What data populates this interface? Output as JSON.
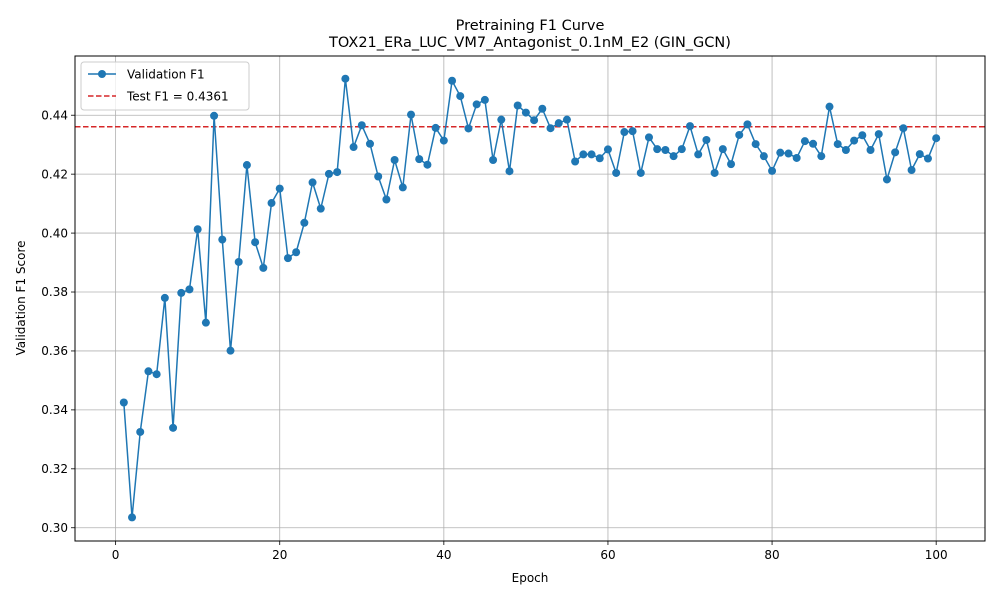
{
  "chart_data": {
    "type": "line",
    "title": "Pretraining F1 Curve",
    "subtitle": "TOX21_ERa_LUC_VM7_Antagonist_0.1nM_E2 (GIN_GCN)",
    "xlabel": "Epoch",
    "ylabel": "Validation F1 Score",
    "xlim": [
      -4.95,
      105.95
    ],
    "ylim": [
      0.2955,
      0.4601
    ],
    "xticks": [
      0,
      20,
      40,
      60,
      80,
      100
    ],
    "xtick_labels": [
      "0",
      "20",
      "40",
      "60",
      "80",
      "100"
    ],
    "yticks": [
      0.3,
      0.32,
      0.34,
      0.36,
      0.38,
      0.4,
      0.42,
      0.44
    ],
    "ytick_labels": [
      "0.30",
      "0.32",
      "0.34",
      "0.36",
      "0.38",
      "0.40",
      "0.42",
      "0.44"
    ],
    "grid": true,
    "legend_position": "upper-left",
    "series": [
      {
        "name": "Validation F1",
        "color": "#1f77b4",
        "style": "solid-with-circle-markers",
        "x": [
          1,
          2,
          3,
          4,
          5,
          6,
          7,
          8,
          9,
          10,
          11,
          12,
          13,
          14,
          15,
          16,
          17,
          18,
          19,
          20,
          21,
          22,
          23,
          24,
          25,
          26,
          27,
          28,
          29,
          30,
          31,
          32,
          33,
          34,
          35,
          36,
          37,
          38,
          39,
          40,
          41,
          42,
          43,
          44,
          45,
          46,
          47,
          48,
          49,
          50,
          51,
          52,
          53,
          54,
          55,
          56,
          57,
          58,
          59,
          60,
          61,
          62,
          63,
          64,
          65,
          66,
          67,
          68,
          69,
          70,
          71,
          72,
          73,
          74,
          75,
          76,
          77,
          78,
          79,
          80,
          81,
          82,
          83,
          84,
          85,
          86,
          87,
          88,
          89,
          90,
          91,
          92,
          93,
          94,
          95,
          96,
          97,
          98,
          99,
          100
        ],
        "values": [
          0.3425,
          0.3035,
          0.3325,
          0.3531,
          0.3521,
          0.378,
          0.3339,
          0.3797,
          0.3809,
          0.4013,
          0.3696,
          0.4398,
          0.3978,
          0.3601,
          0.3902,
          0.4231,
          0.3969,
          0.3882,
          0.4102,
          0.4151,
          0.3915,
          0.3935,
          0.4035,
          0.4172,
          0.4083,
          0.4201,
          0.4207,
          0.4524,
          0.4292,
          0.4366,
          0.4303,
          0.4192,
          0.4114,
          0.4248,
          0.4155,
          0.4402,
          0.4251,
          0.4232,
          0.4357,
          0.4314,
          0.4517,
          0.4465,
          0.4355,
          0.4437,
          0.4452,
          0.4248,
          0.4385,
          0.421,
          0.4433,
          0.4409,
          0.4383,
          0.4422,
          0.4356,
          0.4373,
          0.4385,
          0.4243,
          0.4267,
          0.4267,
          0.4254,
          0.4284,
          0.4204,
          0.4343,
          0.4346,
          0.4204,
          0.4325,
          0.4285,
          0.4282,
          0.4261,
          0.4285,
          0.4363,
          0.4267,
          0.4316,
          0.4204,
          0.4285,
          0.4234,
          0.4333,
          0.4369,
          0.4302,
          0.4261,
          0.4211,
          0.4273,
          0.427,
          0.4255,
          0.4312,
          0.4303,
          0.4261,
          0.4429,
          0.4302,
          0.4282,
          0.4314,
          0.4332,
          0.4282,
          0.4336,
          0.4182,
          0.4274,
          0.4356,
          0.4214,
          0.4268,
          0.4253,
          0.4322
        ]
      }
    ],
    "reference_lines": [
      {
        "name": "Test F1 = 0.4361",
        "orientation": "horizontal",
        "value": 0.4361,
        "color": "#d62728",
        "style": "dashed"
      }
    ]
  }
}
